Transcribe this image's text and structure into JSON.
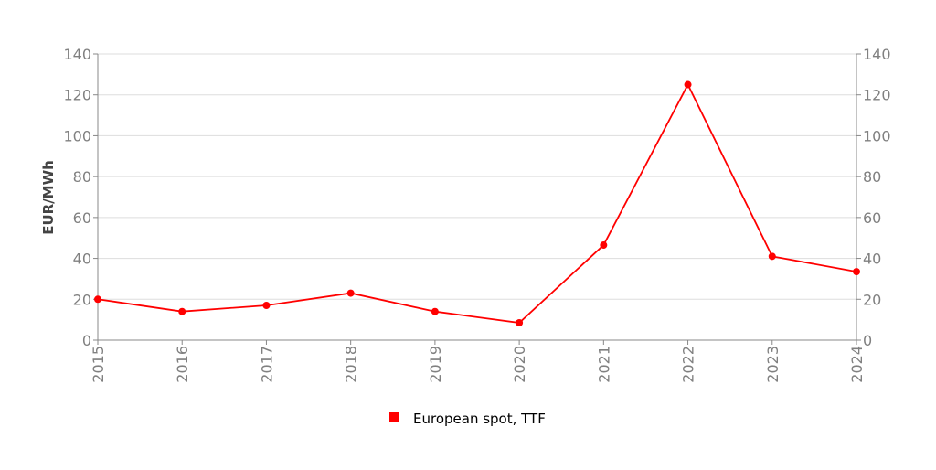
{
  "chart_data": {
    "type": "line",
    "title": "",
    "xlabel": "",
    "ylabel": "EUR/MWh",
    "categories": [
      "2015",
      "2016",
      "2017",
      "2018",
      "2019",
      "2020",
      "2021",
      "2022",
      "2023",
      "2024"
    ],
    "series": [
      {
        "name": "European spot, TTF",
        "color": "#ff0000",
        "values": [
          20,
          14,
          17,
          23,
          14,
          8.5,
          46.5,
          125,
          41,
          33.5
        ]
      }
    ],
    "ylim": [
      0,
      140
    ],
    "yticks": [
      0,
      20,
      40,
      60,
      80,
      100,
      120,
      140
    ],
    "secondary_yaxis": true,
    "grid": true,
    "legend_position": "bottom"
  }
}
